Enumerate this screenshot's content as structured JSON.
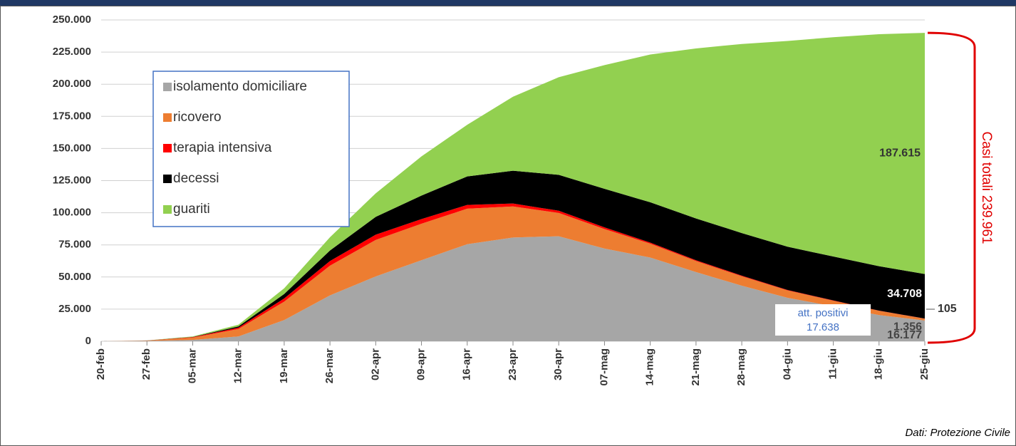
{
  "chart_data": {
    "type": "stacked_area",
    "categories": [
      "20-feb",
      "27-feb",
      "05-mar",
      "12-mar",
      "19-mar",
      "26-mar",
      "02-apr",
      "09-apr",
      "16-apr",
      "23-apr",
      "30-apr",
      "07-mag",
      "14-mag",
      "21-mag",
      "28-mag",
      "04-giu",
      "11-giu",
      "18-giu",
      "25-giu"
    ],
    "series": [
      {
        "name": "isolamento domiciliare",
        "color": "#a6a6a6",
        "value_label": "16.177",
        "values": [
          0,
          282,
          1065,
          3724,
          16498,
          35697,
          50456,
          63084,
          75528,
          80758,
          81708,
          72157,
          65131,
          53830,
          43211,
          33809,
          27214,
          20400,
          16177
        ]
      },
      {
        "name": "ricovero",
        "color": "#ed7d31",
        "value_label": "1.356",
        "values": [
          0,
          248,
          1790,
          5838,
          14363,
          23112,
          28403,
          28399,
          27643,
          24134,
          18149,
          15174,
          10792,
          8613,
          7379,
          5742,
          4320,
          3301,
          1356
        ]
      },
      {
        "name": "terapia intensiva",
        "color": "#ff0000",
        "value_label": "105",
        "values": [
          0,
          56,
          351,
          1028,
          2498,
          3612,
          4053,
          3605,
          2936,
          2267,
          1694,
          1311,
          855,
          640,
          489,
          338,
          236,
          168,
          105
        ]
      },
      {
        "name": "decessi",
        "color": "#000000",
        "value_label": "34.708",
        "values": [
          0,
          17,
          148,
          1016,
          3405,
          8165,
          13915,
          18279,
          22170,
          25549,
          27967,
          29958,
          31368,
          32486,
          33142,
          33689,
          34167,
          34514,
          34708
        ]
      },
      {
        "name": "guariti",
        "color": "#92d050",
        "value_label": "187.615",
        "values": [
          0,
          46,
          414,
          1258,
          4440,
          10361,
          18278,
          30455,
          40164,
          57576,
          75945,
          96276,
          114950,
          132282,
          147101,
          160092,
          170630,
          180544,
          187615
        ]
      }
    ],
    "ylim": [
      0,
      250000
    ],
    "yticks": [
      {
        "value": 0,
        "label": "0"
      },
      {
        "value": 25000,
        "label": "25.000"
      },
      {
        "value": 50000,
        "label": "50.000"
      },
      {
        "value": 75000,
        "label": "75.000"
      },
      {
        "value": 100000,
        "label": "100.000"
      },
      {
        "value": 125000,
        "label": "125.000"
      },
      {
        "value": 150000,
        "label": "150.000"
      },
      {
        "value": 175000,
        "label": "175.000"
      },
      {
        "value": 200000,
        "label": "200.000"
      },
      {
        "value": 225000,
        "label": "225.000"
      },
      {
        "value": 250000,
        "label": "250.000"
      }
    ],
    "grid": true,
    "legend": "upper left",
    "att_positivi": {
      "label": "att. positivi",
      "value": 17638,
      "value_label": "17.638"
    },
    "totale": {
      "label": "Casi totali",
      "value": 239961,
      "value_label": "239.961"
    },
    "source": "Dati: Protezione Civile"
  }
}
